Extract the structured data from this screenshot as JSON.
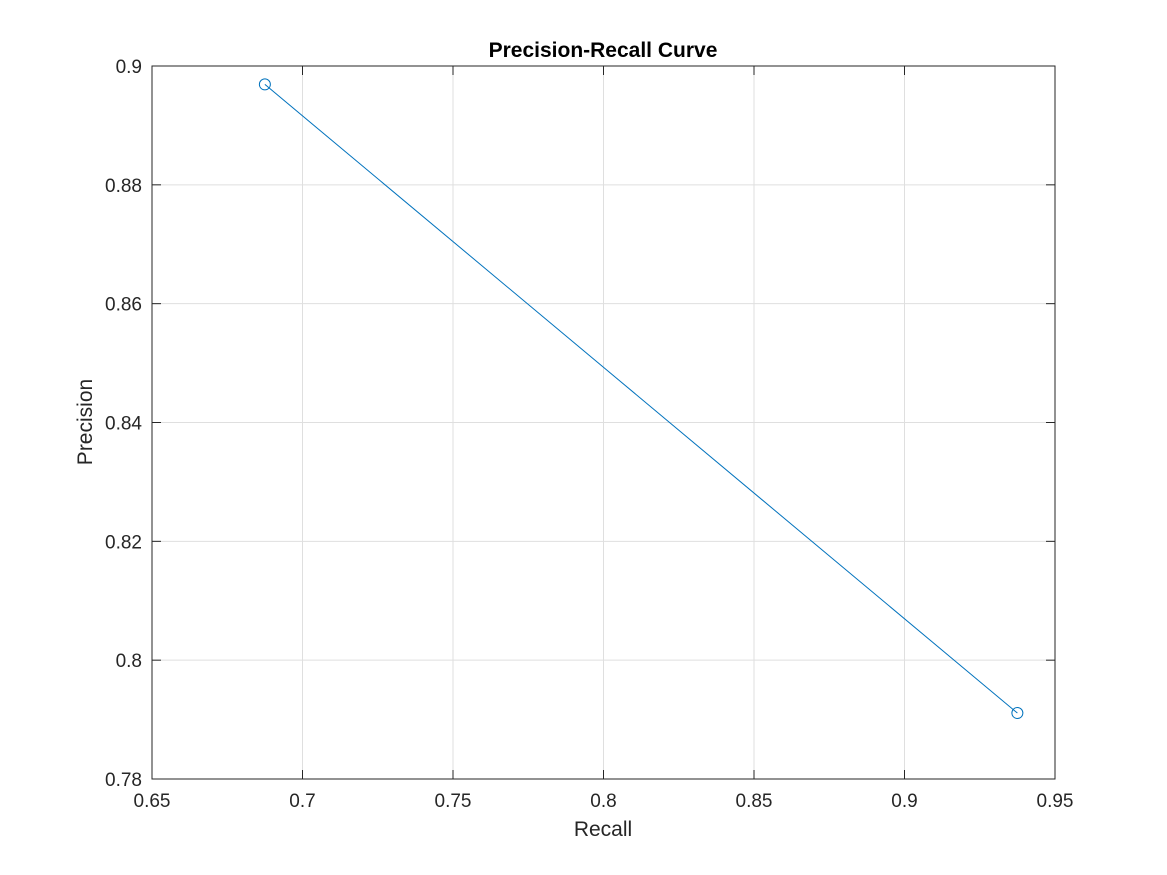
{
  "chart_data": {
    "type": "line",
    "title": "Precision-Recall Curve",
    "xlabel": "Recall",
    "ylabel": "Precision",
    "xlim": [
      0.65,
      0.95
    ],
    "ylim": [
      0.78,
      0.9
    ],
    "xticks": [
      0.65,
      0.7,
      0.75,
      0.8,
      0.85,
      0.9,
      0.95
    ],
    "yticks": [
      0.78,
      0.8,
      0.82,
      0.84,
      0.86,
      0.88,
      0.9
    ],
    "xtick_labels": [
      "0.65",
      "0.7",
      "0.75",
      "0.8",
      "0.85",
      "0.9",
      "0.95"
    ],
    "ytick_labels": [
      "0.78",
      "0.8",
      "0.82",
      "0.84",
      "0.86",
      "0.88",
      "0.9"
    ],
    "grid": true,
    "marker": "circle",
    "line_color": "#0072BD",
    "series": [
      {
        "x": [
          0.6875,
          0.9375
        ],
        "y": [
          0.8969,
          0.7911
        ]
      }
    ]
  }
}
